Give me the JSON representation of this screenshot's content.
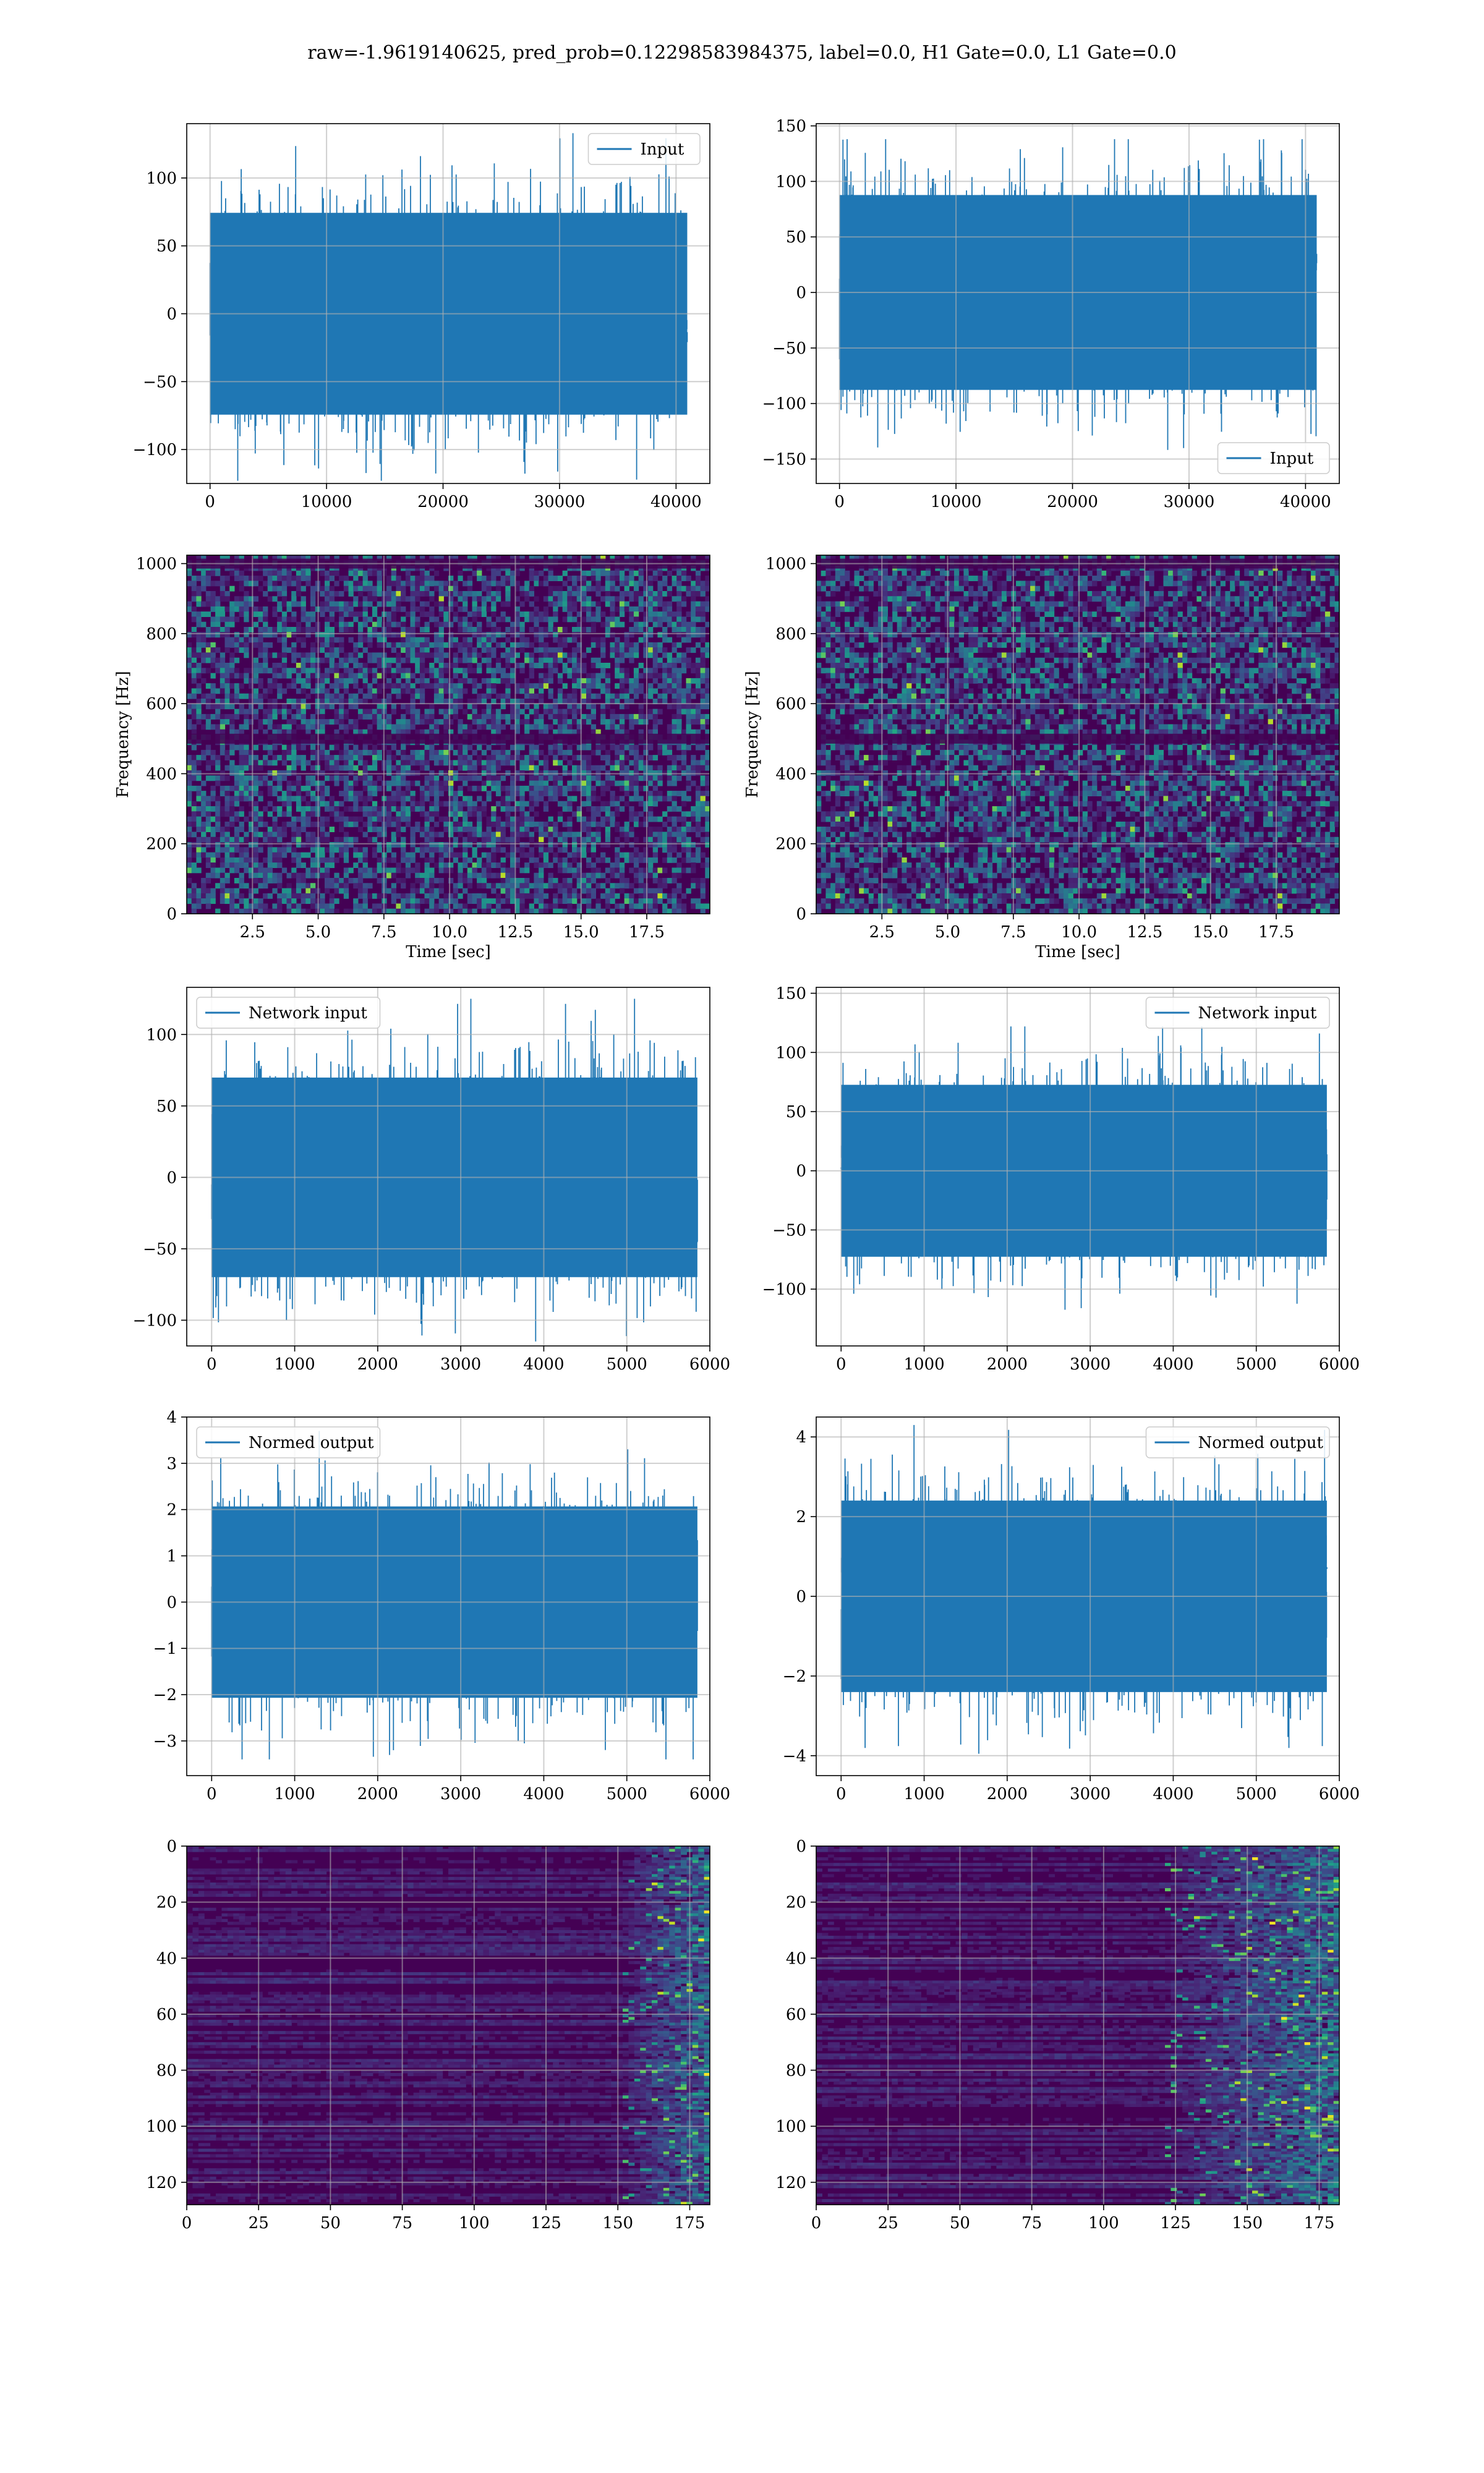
{
  "suptitle": "raw=-1.9619140625, pred_prob=0.12298583984375, label=0.0, H1 Gate=0.0, L1 Gate=0.0",
  "colors": {
    "series": "#1f77b4",
    "grid": "#b0b0b0",
    "viridis_dark": "#440154",
    "viridis_bright": "#fde725"
  },
  "chart_data": [
    {
      "id": "h1-input",
      "type": "line",
      "row": 0,
      "col": 0,
      "legend": {
        "label": "Input",
        "loc": "upper right"
      },
      "xlim": [
        -2000,
        42900
      ],
      "ylim": [
        -125,
        140
      ],
      "xticks": [
        0,
        10000,
        20000,
        30000,
        40000
      ],
      "yticks": [
        -100,
        -50,
        0,
        50,
        100
      ],
      "series": [
        {
          "x_range": [
            0,
            40960
          ],
          "envelope": [
            -123,
            133
          ]
        }
      ],
      "grid": true
    },
    {
      "id": "l1-input",
      "type": "line",
      "row": 0,
      "col": 1,
      "legend": {
        "label": "Input",
        "loc": "lower right"
      },
      "xlim": [
        -2000,
        42900
      ],
      "ylim": [
        -172,
        152
      ],
      "xticks": [
        0,
        10000,
        20000,
        30000,
        40000
      ],
      "yticks": [
        -150,
        -100,
        -50,
        0,
        50,
        100,
        150
      ],
      "series": [
        {
          "x_range": [
            0,
            40960
          ],
          "envelope": [
            -157,
            138
          ]
        }
      ],
      "grid": true
    },
    {
      "id": "h1-spectrogram",
      "type": "heatmap",
      "row": 1,
      "col": 0,
      "xlabel": "Time [sec]",
      "ylabel": "Frequency [Hz]",
      "xlim": [
        0,
        19.9
      ],
      "ylim": [
        0,
        1024
      ],
      "xticks": [
        2.5,
        5.0,
        7.5,
        10.0,
        12.5,
        15.0,
        17.5
      ],
      "xtick_labels": [
        "2.5",
        "5.0",
        "7.5",
        "10.0",
        "12.5",
        "15.0",
        "17.5"
      ],
      "yticks": [
        0,
        200,
        400,
        600,
        800,
        1000
      ],
      "dark_bands_hz": [
        500,
        1000
      ],
      "grid": true
    },
    {
      "id": "l1-spectrogram",
      "type": "heatmap",
      "row": 1,
      "col": 1,
      "xlabel": "Time [sec]",
      "ylabel": "Frequency [Hz]",
      "xlim": [
        0,
        19.9
      ],
      "ylim": [
        0,
        1024
      ],
      "xticks": [
        2.5,
        5.0,
        7.5,
        10.0,
        12.5,
        15.0,
        17.5
      ],
      "xtick_labels": [
        "2.5",
        "5.0",
        "7.5",
        "10.0",
        "12.5",
        "15.0",
        "17.5"
      ],
      "yticks": [
        0,
        200,
        400,
        600,
        800,
        1000
      ],
      "dark_bands_hz": [
        500,
        1000
      ],
      "grid": true
    },
    {
      "id": "h1-network-input",
      "type": "line",
      "row": 2,
      "col": 0,
      "legend": {
        "label": "Network input",
        "loc": "upper left"
      },
      "xlim": [
        -300,
        6000
      ],
      "ylim": [
        -118,
        133
      ],
      "xticks": [
        0,
        1000,
        2000,
        3000,
        4000,
        5000,
        6000
      ],
      "yticks": [
        -100,
        -50,
        0,
        50,
        100
      ],
      "series": [
        {
          "x_range": [
            0,
            5850
          ],
          "envelope": [
            -115,
            125
          ]
        }
      ],
      "grid": true
    },
    {
      "id": "l1-network-input",
      "type": "line",
      "row": 2,
      "col": 1,
      "legend": {
        "label": "Network input",
        "loc": "upper right"
      },
      "xlim": [
        -300,
        6000
      ],
      "ylim": [
        -148,
        155
      ],
      "xticks": [
        0,
        1000,
        2000,
        3000,
        4000,
        5000,
        6000
      ],
      "yticks": [
        -100,
        -50,
        0,
        50,
        100,
        150
      ],
      "series": [
        {
          "x_range": [
            0,
            5850
          ],
          "envelope": [
            -130,
            122
          ]
        }
      ],
      "grid": true
    },
    {
      "id": "h1-normed-output",
      "type": "line",
      "row": 3,
      "col": 0,
      "legend": {
        "label": "Normed output",
        "loc": "upper left"
      },
      "xlim": [
        -300,
        6000
      ],
      "ylim": [
        -3.75,
        4.0
      ],
      "xticks": [
        0,
        1000,
        2000,
        3000,
        4000,
        5000,
        6000
      ],
      "yticks": [
        -3,
        -2,
        -1,
        0,
        1,
        2,
        3,
        4
      ],
      "series": [
        {
          "x_range": [
            0,
            5850
          ],
          "envelope": [
            -3.4,
            3.7
          ]
        }
      ],
      "grid": true
    },
    {
      "id": "l1-normed-output",
      "type": "line",
      "row": 3,
      "col": 1,
      "legend": {
        "label": "Normed output",
        "loc": "upper right"
      },
      "xlim": [
        -300,
        6000
      ],
      "ylim": [
        -4.5,
        4.5
      ],
      "xticks": [
        0,
        1000,
        2000,
        3000,
        4000,
        5000,
        6000
      ],
      "yticks": [
        -4,
        -2,
        0,
        2,
        4
      ],
      "series": [
        {
          "x_range": [
            0,
            5850
          ],
          "envelope": [
            -4.0,
            4.3
          ]
        }
      ],
      "grid": true
    },
    {
      "id": "h1-feature-map",
      "type": "heatmap",
      "row": 4,
      "col": 0,
      "xlim": [
        0,
        182
      ],
      "ylim": [
        128,
        0
      ],
      "xticks": [
        0,
        25,
        50,
        75,
        100,
        125,
        150,
        175
      ],
      "yticks": [
        0,
        20,
        40,
        60,
        80,
        100,
        120
      ],
      "y_inverted": true,
      "bright_region_x": [
        150,
        182
      ],
      "grid": true
    },
    {
      "id": "l1-feature-map",
      "type": "heatmap",
      "row": 4,
      "col": 1,
      "xlim": [
        0,
        182
      ],
      "ylim": [
        128,
        0
      ],
      "xticks": [
        0,
        25,
        50,
        75,
        100,
        125,
        150,
        175
      ],
      "yticks": [
        0,
        20,
        40,
        60,
        80,
        100,
        120
      ],
      "y_inverted": true,
      "bright_region_x": [
        120,
        182
      ],
      "grid": true
    }
  ]
}
